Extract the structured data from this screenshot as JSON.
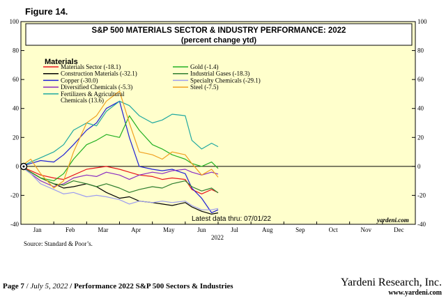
{
  "figure_label": "Figure 14.",
  "source": "Source: Standard & Poor’s.",
  "footer": {
    "page": "Page 7",
    "date": "July 5, 2022",
    "title": "Performance 2022 S&P 500 Sectors & Industries",
    "brand": "Yardeni Research, Inc.",
    "url": "www.yardeni.com"
  },
  "chart_data": {
    "type": "line",
    "title": "S&P 500 MATERIALS SECTOR & INDUSTRY PERFORMANCE: 2022",
    "subtitle": "(percent change ytd)",
    "legend_title": "Materials",
    "legend_position": "top-left",
    "ylim": [
      -40,
      100
    ],
    "yticks": [
      -40,
      -20,
      0,
      20,
      40,
      60,
      80,
      100
    ],
    "right_yticks": [
      -40,
      -20,
      0,
      20,
      40,
      60,
      80,
      100
    ],
    "xlim": [
      0,
      12
    ],
    "months": [
      "Jan",
      "Feb",
      "Mar",
      "Apr",
      "May",
      "Jun",
      "Jul",
      "Aug",
      "Sep",
      "Oct",
      "Nov",
      "Dec"
    ],
    "year_label": "2022",
    "note": "Latest data thru: 07/01/22",
    "watermark": "yardeni.com",
    "background": "#ffffcc",
    "series": [
      {
        "name": "Materials Sector (-18.1)",
        "color": "#e8141c",
        "legend_col": 0,
        "legend_row": 0,
        "x": [
          0,
          0.3,
          0.6,
          1.0,
          1.3,
          1.6,
          2.0,
          2.3,
          2.6,
          3.0,
          3.3,
          3.6,
          4.0,
          4.3,
          4.6,
          5.0,
          5.2,
          5.5,
          5.8,
          6.0
        ],
        "values": [
          0,
          -3,
          -6,
          -8,
          -9,
          -6,
          -2,
          -1,
          0,
          -2,
          -4,
          -6,
          -7,
          -9,
          -8,
          -9,
          -16,
          -19,
          -16,
          -18.1
        ]
      },
      {
        "name": "Construction Materials (-32.1)",
        "color": "#000000",
        "legend_col": 0,
        "legend_row": 1,
        "x": [
          0,
          0.3,
          0.6,
          1.0,
          1.3,
          1.6,
          2.0,
          2.3,
          2.6,
          3.0,
          3.3,
          3.6,
          4.0,
          4.3,
          4.6,
          5.0,
          5.2,
          5.5,
          5.8,
          6.0
        ],
        "values": [
          0,
          -4,
          -8,
          -12,
          -15,
          -14,
          -12,
          -14,
          -18,
          -22,
          -21,
          -24,
          -25,
          -26,
          -27,
          -25,
          -28,
          -31,
          -33,
          -32.1
        ]
      },
      {
        "name": "Copper (-30.0)",
        "color": "#1f1fd6",
        "legend_col": 0,
        "legend_row": 2,
        "x": [
          0,
          0.3,
          0.6,
          1.0,
          1.3,
          1.6,
          2.0,
          2.3,
          2.6,
          3.0,
          3.3,
          3.6,
          4.0,
          4.3,
          4.6,
          5.0,
          5.2,
          5.5,
          5.8,
          6.0
        ],
        "values": [
          0,
          2,
          4,
          3,
          8,
          15,
          25,
          30,
          40,
          45,
          20,
          0,
          -2,
          -3,
          -2,
          -5,
          -15,
          -22,
          -32,
          -30.0
        ]
      },
      {
        "name": "Diversified Chemicals (-5.3)",
        "color": "#8a2bc2",
        "legend_col": 0,
        "legend_row": 3,
        "x": [
          0,
          0.3,
          0.6,
          1.0,
          1.3,
          1.6,
          2.0,
          2.3,
          2.6,
          3.0,
          3.3,
          3.6,
          4.0,
          4.3,
          4.6,
          5.0,
          5.2,
          5.5,
          5.8,
          6.0
        ],
        "values": [
          0,
          -5,
          -10,
          -14,
          -12,
          -8,
          -6,
          -7,
          -4,
          -6,
          -9,
          -6,
          -4,
          -5,
          -3,
          -2,
          -4,
          -6,
          -4,
          -5.3
        ]
      },
      {
        "name": "Fertilizers & Agricultural Chemicals (13.6)",
        "color": "#1fa8a0",
        "legend_col": 0,
        "legend_row": 4,
        "legend_lines": [
          "Fertilizers & Agricultural",
          "Chemicals (13.6)"
        ],
        "x": [
          0,
          0.3,
          0.6,
          1.0,
          1.3,
          1.6,
          2.0,
          2.3,
          2.6,
          3.0,
          3.3,
          3.6,
          4.0,
          4.3,
          4.6,
          5.0,
          5.2,
          5.5,
          5.8,
          6.0
        ],
        "values": [
          0,
          3,
          6,
          10,
          15,
          25,
          30,
          28,
          38,
          45,
          42,
          35,
          30,
          32,
          36,
          35,
          18,
          12,
          16,
          13.6
        ]
      },
      {
        "name": "Gold (-1.4)",
        "color": "#22b022",
        "legend_col": 1,
        "legend_row": 0,
        "x": [
          0,
          0.3,
          0.6,
          1.0,
          1.3,
          1.6,
          2.0,
          2.3,
          2.6,
          3.0,
          3.3,
          3.6,
          4.0,
          4.3,
          4.6,
          5.0,
          5.2,
          5.5,
          5.8,
          6.0
        ],
        "values": [
          0,
          -4,
          -8,
          -10,
          -5,
          5,
          15,
          18,
          22,
          20,
          35,
          25,
          15,
          12,
          8,
          5,
          2,
          0,
          3,
          -1.4
        ]
      },
      {
        "name": "Industrial Gases (-18.3)",
        "color": "#2e7d2e",
        "legend_col": 1,
        "legend_row": 1,
        "x": [
          0,
          0.3,
          0.6,
          1.0,
          1.3,
          1.6,
          2.0,
          2.3,
          2.6,
          3.0,
          3.3,
          3.6,
          4.0,
          4.3,
          4.6,
          5.0,
          5.2,
          5.5,
          5.8,
          6.0
        ],
        "values": [
          0,
          -4,
          -8,
          -12,
          -13,
          -10,
          -12,
          -14,
          -12,
          -15,
          -18,
          -16,
          -14,
          -15,
          -12,
          -10,
          -14,
          -17,
          -15,
          -18.3
        ]
      },
      {
        "name": "Specialty Chemicals (-29.1)",
        "color": "#9c9cf0",
        "legend_col": 1,
        "legend_row": 2,
        "x": [
          0,
          0.3,
          0.6,
          1.0,
          1.3,
          1.6,
          2.0,
          2.3,
          2.6,
          3.0,
          3.3,
          3.6,
          4.0,
          4.3,
          4.6,
          5.0,
          5.2,
          5.5,
          5.8,
          6.0
        ],
        "values": [
          0,
          -5,
          -12,
          -16,
          -19,
          -18,
          -21,
          -20,
          -21,
          -23,
          -26,
          -24,
          -25,
          -24,
          -25,
          -24,
          -27,
          -30,
          -30,
          -29.1
        ]
      },
      {
        "name": "Steel (-7.5)",
        "color": "#f0a020",
        "legend_col": 1,
        "legend_row": 3,
        "x": [
          0,
          0.3,
          0.6,
          1.0,
          1.3,
          1.6,
          2.0,
          2.3,
          2.6,
          3.0,
          3.3,
          3.6,
          4.0,
          4.3,
          4.6,
          5.0,
          5.2,
          5.5,
          5.8,
          6.0
        ],
        "values": [
          0,
          5,
          -5,
          -15,
          -10,
          10,
          30,
          35,
          45,
          52,
          30,
          10,
          8,
          5,
          10,
          8,
          2,
          -6,
          -2,
          -7.5
        ]
      }
    ]
  }
}
